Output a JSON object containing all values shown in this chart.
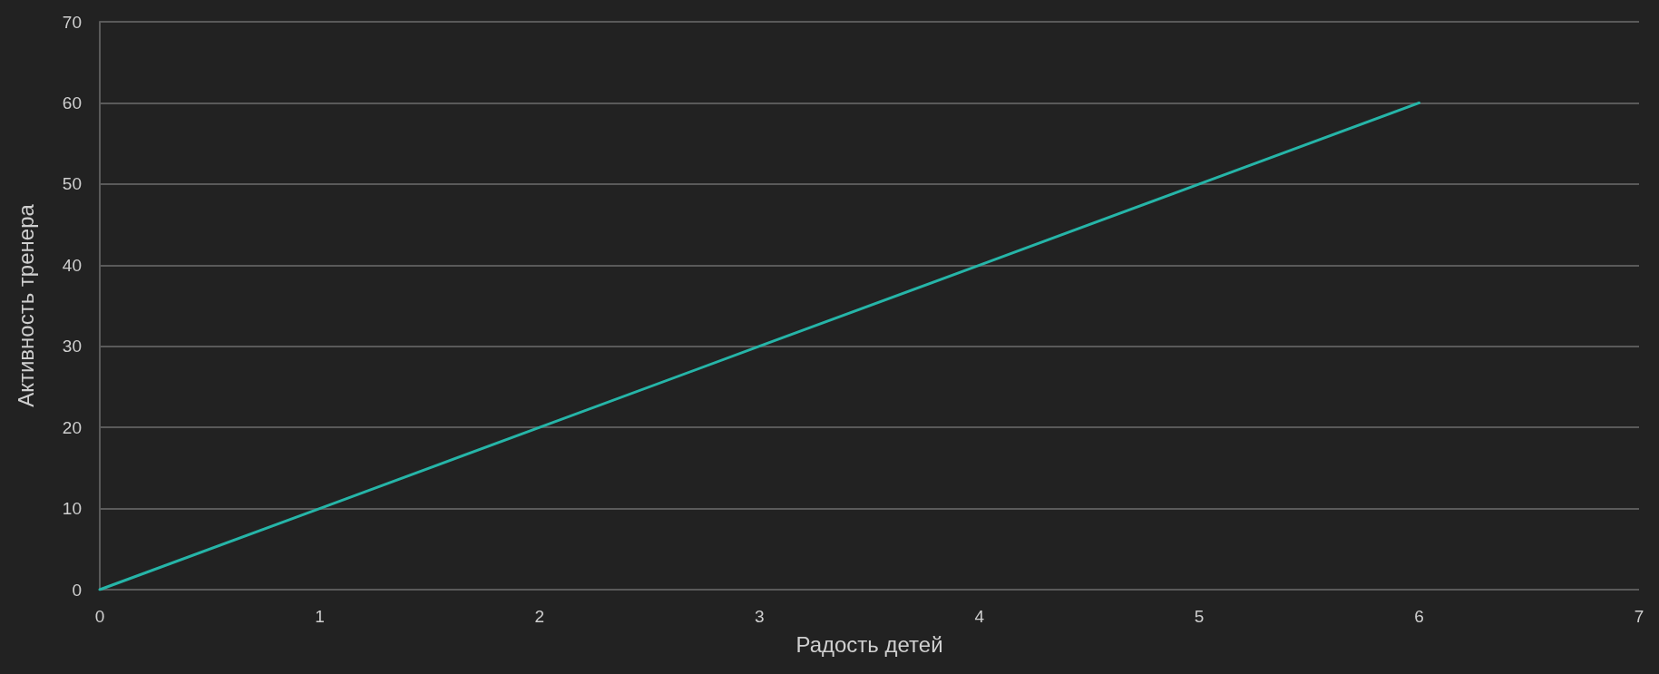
{
  "chart_data": {
    "type": "line",
    "xlabel": "Радость детей",
    "ylabel": "Активность тренера",
    "x": [
      0,
      1,
      2,
      3,
      4,
      5,
      6
    ],
    "series": [
      {
        "color": "#26b5a8",
        "values": [
          0,
          10,
          20,
          30,
          40,
          50,
          60
        ]
      }
    ],
    "xlim": [
      0,
      7
    ],
    "xticks": [
      0,
      1,
      2,
      3,
      4,
      5,
      6,
      7
    ],
    "ylim": [
      0,
      70
    ],
    "yticks": [
      0,
      10,
      20,
      30,
      40,
      50,
      60,
      70
    ],
    "grid": "y",
    "marker": "none",
    "line_style": "solid"
  }
}
